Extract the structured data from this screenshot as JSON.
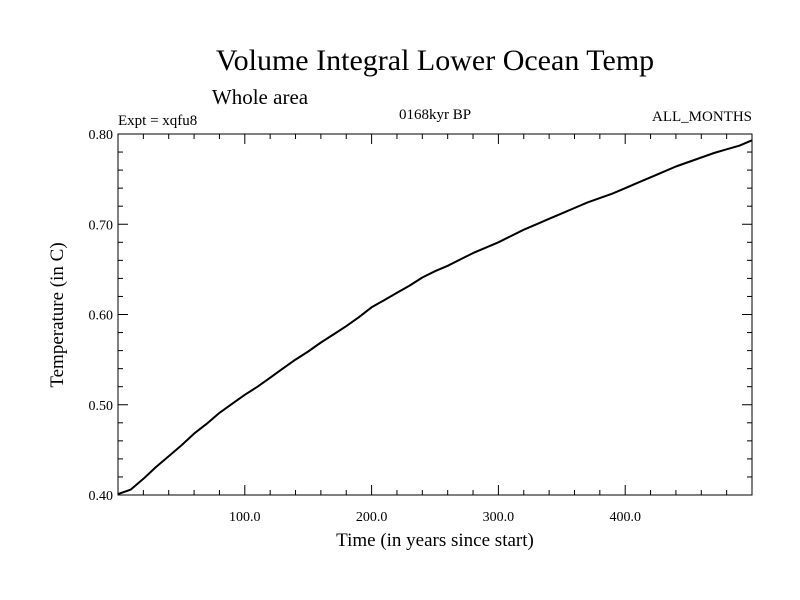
{
  "chart_data": {
    "type": "line",
    "title": "Volume Integral Lower Ocean Temp",
    "subtitle": "Whole area",
    "left_label": "Expt = xqfu8",
    "center_label": "0168kyr BP",
    "right_label": "ALL_MONTHS",
    "xlabel": "Time (in years since start)",
    "ylabel": "Temperature (in C)",
    "xlim": [
      0,
      500
    ],
    "ylim": [
      0.4,
      0.8
    ],
    "x_ticks": [
      100,
      200,
      300,
      400
    ],
    "x_tick_labels": [
      "100.0",
      "200.0",
      "300.0",
      "400.0"
    ],
    "y_ticks": [
      0.4,
      0.5,
      0.6,
      0.7,
      0.8
    ],
    "y_tick_labels": [
      "0.40",
      "0.50",
      "0.60",
      "0.70",
      "0.80"
    ],
    "x_minor_step": 20,
    "y_minor_step": 0.02,
    "grid": false,
    "series": [
      {
        "name": "xqfu8",
        "color": "#000000",
        "x": [
          0,
          10,
          20,
          30,
          40,
          50,
          60,
          70,
          80,
          90,
          100,
          110,
          120,
          130,
          140,
          150,
          160,
          170,
          180,
          190,
          200,
          210,
          220,
          230,
          240,
          250,
          260,
          270,
          280,
          290,
          300,
          310,
          320,
          330,
          340,
          350,
          360,
          370,
          380,
          390,
          400,
          410,
          420,
          430,
          440,
          450,
          460,
          470,
          480,
          490,
          500
        ],
        "values": [
          0.401,
          0.406,
          0.418,
          0.431,
          0.443,
          0.455,
          0.468,
          0.479,
          0.491,
          0.501,
          0.511,
          0.52,
          0.53,
          0.54,
          0.55,
          0.559,
          0.569,
          0.578,
          0.587,
          0.597,
          0.608,
          0.616,
          0.624,
          0.632,
          0.641,
          0.648,
          0.654,
          0.661,
          0.668,
          0.674,
          0.68,
          0.687,
          0.694,
          0.7,
          0.706,
          0.712,
          0.718,
          0.724,
          0.729,
          0.734,
          0.74,
          0.746,
          0.752,
          0.758,
          0.764,
          0.769,
          0.774,
          0.779,
          0.783,
          0.787,
          0.793
        ]
      }
    ]
  }
}
